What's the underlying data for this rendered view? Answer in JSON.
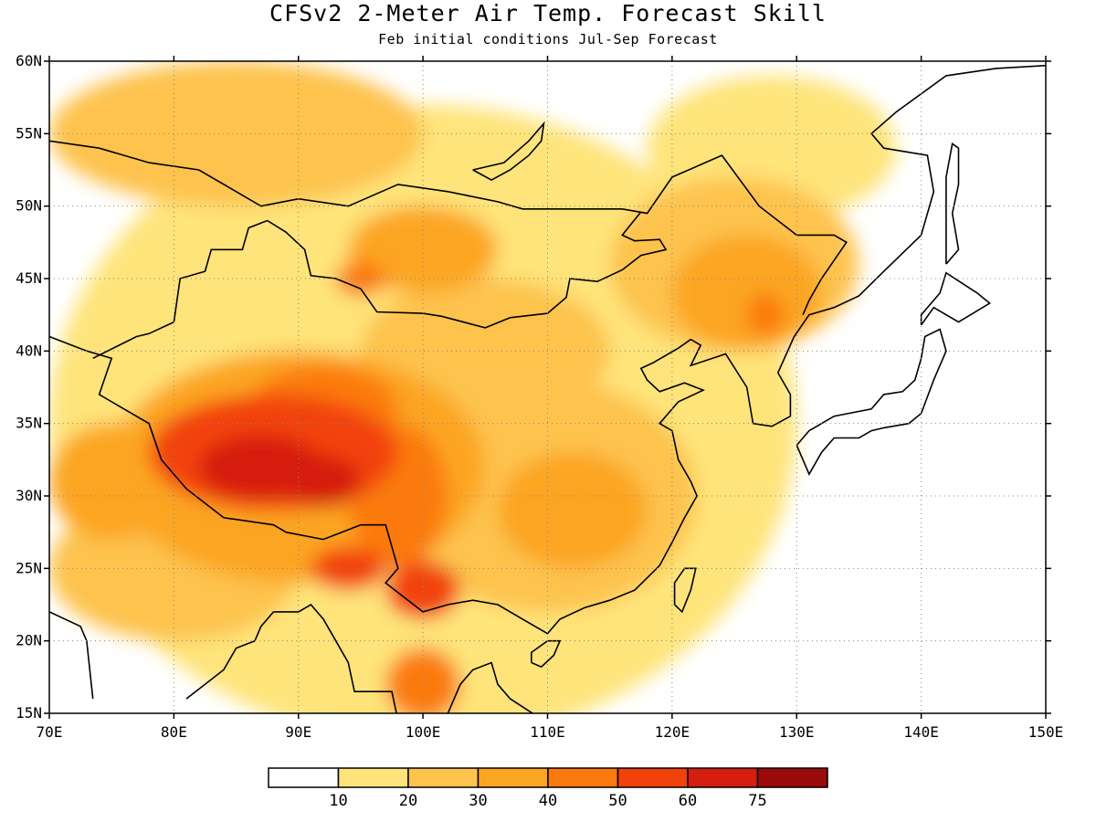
{
  "header": {
    "title": "CFSv2 2-Meter Air Temp. Forecast Skill",
    "subtitle": "Feb initial conditions  Jul-Sep Forecast"
  },
  "map": {
    "lon_range": [
      70,
      150
    ],
    "lat_range": [
      15,
      60
    ],
    "lon_ticks": [
      "70E",
      "80E",
      "90E",
      "100E",
      "110E",
      "120E",
      "130E",
      "140E",
      "150E"
    ],
    "lat_ticks": [
      "60N",
      "55N",
      "50N",
      "45N",
      "40N",
      "35N",
      "30N",
      "25N",
      "20N",
      "15N"
    ],
    "gridlines": "dotted"
  },
  "colorbar": {
    "labels": [
      "10",
      "20",
      "30",
      "40",
      "50",
      "60",
      "75"
    ],
    "colors": [
      "#ffffff",
      "#fee47a",
      "#fdc34d",
      "#fca522",
      "#fb7a10",
      "#f2420b",
      "#d51e0f",
      "#9c0b0b"
    ]
  },
  "chart_data": {
    "type": "heatmap",
    "title": "CFSv2 2-Meter Air Temp. Forecast Skill",
    "subtitle": "Feb initial conditions  Jul-Sep Forecast",
    "x_range": [
      70,
      150
    ],
    "y_range": [
      15,
      60
    ],
    "levels": [
      10,
      20,
      30,
      40,
      50,
      60,
      75
    ],
    "regions": [
      {
        "lon": 87,
        "lat": 32,
        "skill": "60-75",
        "rx": 5,
        "ry": 2.2
      },
      {
        "lon": 92,
        "lat": 31,
        "skill": "60-75",
        "rx": 3,
        "ry": 1.8
      },
      {
        "lon": 88,
        "lat": 33,
        "skill": "50-60",
        "rx": 10,
        "ry": 4
      },
      {
        "lon": 100,
        "lat": 23.5,
        "skill": "50-60",
        "rx": 3,
        "ry": 2
      },
      {
        "lon": 94,
        "lat": 25,
        "skill": "50-60",
        "rx": 3,
        "ry": 1.5
      },
      {
        "lon": 92,
        "lat": 36,
        "skill": "40-50",
        "rx": 6,
        "ry": 3
      },
      {
        "lon": 98,
        "lat": 30,
        "skill": "40-50",
        "rx": 4,
        "ry": 5
      },
      {
        "lon": 100,
        "lat": 17,
        "skill": "40-50",
        "rx": 3,
        "ry": 2.5
      },
      {
        "lon": 95,
        "lat": 45,
        "skill": "40-50",
        "rx": 2,
        "ry": 1.2
      },
      {
        "lon": 127.5,
        "lat": 42.5,
        "skill": "40-50",
        "rx": 1.5,
        "ry": 1.5
      },
      {
        "lon": 90,
        "lat": 32,
        "skill": "30-40",
        "rx": 15,
        "ry": 8
      },
      {
        "lon": 112,
        "lat": 29,
        "skill": "30-40",
        "rx": 6,
        "ry": 4
      },
      {
        "lon": 100,
        "lat": 47,
        "skill": "30-40",
        "rx": 6,
        "ry": 3
      },
      {
        "lon": 126,
        "lat": 44,
        "skill": "30-40",
        "rx": 6,
        "ry": 4
      },
      {
        "lon": 75,
        "lat": 31,
        "skill": "30-40",
        "rx": 5,
        "ry": 4
      },
      {
        "lon": 110,
        "lat": 30,
        "skill": "20-30",
        "rx": 12,
        "ry": 8
      },
      {
        "lon": 85,
        "lat": 55,
        "skill": "20-30",
        "rx": 15,
        "ry": 5
      },
      {
        "lon": 125,
        "lat": 46,
        "skill": "20-30",
        "rx": 10,
        "ry": 6
      },
      {
        "lon": 80,
        "lat": 25,
        "skill": "20-30",
        "rx": 10,
        "ry": 5
      },
      {
        "lon": 105,
        "lat": 40,
        "skill": "20-30",
        "rx": 10,
        "ry": 5
      },
      {
        "lon": 100,
        "lat": 35,
        "skill": "10-20",
        "rx": 30,
        "ry": 22
      },
      {
        "lon": 128,
        "lat": 54,
        "skill": "10-20",
        "rx": 10,
        "ry": 5
      }
    ]
  }
}
